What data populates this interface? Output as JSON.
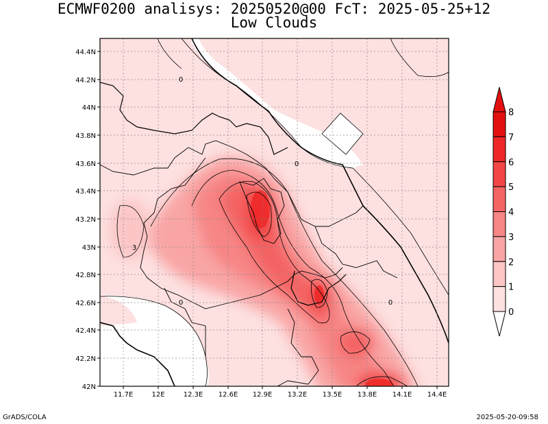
{
  "title": "ECMWF0200 analisys: 20250520@00 FcT: 2025-05-25+12",
  "subtitle": "Low Clouds",
  "footer_left": "GrADS/COLA",
  "footer_right": "2025-05-20-09:58",
  "x_ticks": [
    "11.7E",
    "12E",
    "12.3E",
    "12.6E",
    "12.9E",
    "13.2E",
    "13.5E",
    "13.8E",
    "14.1E",
    "14.4E"
  ],
  "y_ticks": [
    "44.4N",
    "44.2N",
    "44N",
    "43.8N",
    "43.6N",
    "43.4N",
    "43.2N",
    "43N",
    "42.8N",
    "42.6N",
    "42.4N",
    "42.2N",
    "42N"
  ],
  "colorbar": {
    "labels": [
      "0",
      "1",
      "2",
      "3",
      "4",
      "5",
      "6",
      "7",
      "8"
    ],
    "colors": [
      "#ffffff",
      "#fde0e0",
      "#fcc6c6",
      "#f9a5a5",
      "#f78585",
      "#f46464",
      "#f24545",
      "#ef2727",
      "#e31010"
    ]
  },
  "contour_labels": [
    "0",
    "0",
    "3",
    "0",
    "0"
  ]
}
